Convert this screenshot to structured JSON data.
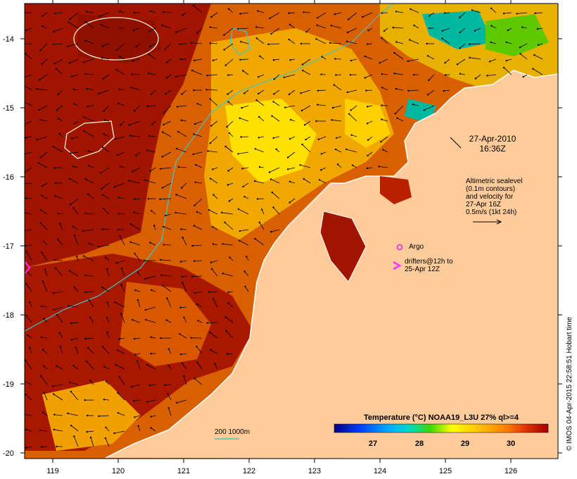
{
  "map": {
    "lat_ticks": [
      "-14",
      "-15",
      "-16",
      "-17",
      "-18",
      "-19",
      "-20"
    ],
    "lon_ticks": [
      "119",
      "120",
      "121",
      "122",
      "123",
      "124",
      "125",
      "126"
    ],
    "colors": {
      "land": "#fecb9a",
      "hot": "#a01400",
      "warm": "#d85a00",
      "mid": "#f0a000",
      "cool": "#ffe000",
      "cold": "#00b8a0",
      "contour": "#40c8c0"
    }
  },
  "annotations": {
    "date_line1": "27-Apr-2010",
    "date_line2": "16:36Z",
    "alt_line1": "Altimetric sealevel",
    "alt_line2": "(0.1m contours)",
    "alt_line3": "and velocity for",
    "alt_line4": "27-Apr 16Z",
    "alt_line5": "0.5m/s (1kt 24h)",
    "argo": "Argo",
    "drift_line1": "drifters@12h to",
    "drift_line2": "25-Apr 12Z",
    "depth_legend": "200  1000m"
  },
  "colorbar": {
    "title": "Temperature (°C) NOAA19_L3U 27% ql>=4",
    "ticks": [
      "27",
      "28",
      "29",
      "30"
    ],
    "stops": [
      "#000080",
      "#0030ff",
      "#00a0ff",
      "#00e0c0",
      "#40e000",
      "#ffff00",
      "#ffc000",
      "#ff8000",
      "#e03000",
      "#a00000"
    ]
  },
  "credit": "© IMOS 04-Apr-2015 22:58:51 Hobart time"
}
